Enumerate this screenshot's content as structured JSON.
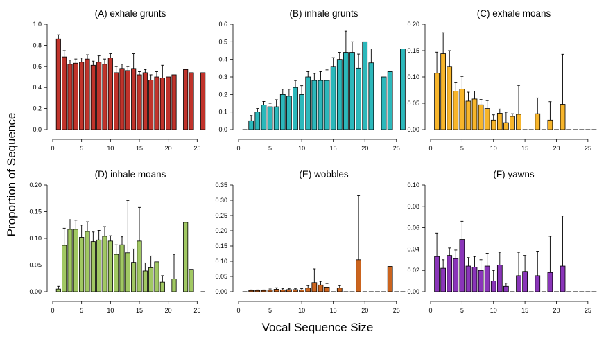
{
  "figure": {
    "xlabel": "Vocal Sequence Size",
    "ylabel": "Proportion of Sequence"
  },
  "chart_data": [
    {
      "type": "bar",
      "title": "(A) exhale grunts",
      "color": "#c0332b",
      "xlim": [
        0,
        27
      ],
      "xticks": [
        0,
        5,
        10,
        15,
        20,
        25
      ],
      "ylim": [
        0,
        1.0
      ],
      "yticks": [
        "0.0",
        "0.2",
        "0.4",
        "0.6",
        "0.8",
        "1.0"
      ],
      "x": [
        1,
        2,
        3,
        4,
        5,
        6,
        7,
        8,
        9,
        10,
        11,
        12,
        13,
        14,
        15,
        16,
        17,
        18,
        19,
        20,
        21,
        23,
        24,
        26
      ],
      "values": [
        0.86,
        0.69,
        0.62,
        0.63,
        0.64,
        0.67,
        0.61,
        0.64,
        0.62,
        0.68,
        0.54,
        0.58,
        0.56,
        0.58,
        0.52,
        0.54,
        0.47,
        0.5,
        0.49,
        0.5,
        0.52,
        0.57,
        0.54,
        0.54
      ],
      "errors": [
        0.04,
        0.06,
        0.04,
        0.04,
        0.04,
        0.04,
        0.04,
        0.06,
        0.05,
        0.04,
        0.06,
        0.04,
        0.04,
        0.14,
        0.03,
        0.03,
        0.05,
        0.05,
        0.12,
        0.0,
        0.0,
        0.0,
        0.0,
        0.0
      ]
    },
    {
      "type": "bar",
      "title": "(B) inhale grunts",
      "color": "#2cb8bb",
      "xlim": [
        0,
        27
      ],
      "xticks": [
        0,
        5,
        10,
        15,
        20,
        25
      ],
      "ylim": [
        0,
        0.6
      ],
      "yticks": [
        "0.0",
        "0.1",
        "0.2",
        "0.3",
        "0.4",
        "0.5",
        "0.6"
      ],
      "x": [
        2,
        3,
        4,
        5,
        6,
        7,
        8,
        9,
        10,
        11,
        12,
        13,
        14,
        15,
        16,
        17,
        18,
        19,
        20,
        21,
        23,
        24,
        26
      ],
      "values": [
        0.05,
        0.1,
        0.14,
        0.13,
        0.13,
        0.2,
        0.19,
        0.24,
        0.2,
        0.3,
        0.28,
        0.28,
        0.28,
        0.36,
        0.4,
        0.44,
        0.44,
        0.35,
        0.5,
        0.38,
        0.3,
        0.33,
        0.46
      ],
      "errors": [
        0.03,
        0.02,
        0.02,
        0.02,
        0.04,
        0.03,
        0.04,
        0.04,
        0.05,
        0.03,
        0.04,
        0.05,
        0.06,
        0.05,
        0.04,
        0.12,
        0.06,
        0.08,
        0.0,
        0.08,
        0.0,
        0.0,
        0.0
      ],
      "zero_x": [
        1
      ]
    },
    {
      "type": "bar",
      "title": "(C) exhale moans",
      "color": "#f7b52b",
      "xlim": [
        0,
        27
      ],
      "xticks": [
        0,
        5,
        10,
        15,
        20,
        25
      ],
      "ylim": [
        0,
        0.2
      ],
      "yticks": [
        "0.00",
        "0.05",
        "0.10",
        "0.15",
        "0.20"
      ],
      "x": [
        1,
        2,
        3,
        4,
        5,
        6,
        7,
        8,
        9,
        10,
        11,
        12,
        13,
        14,
        17,
        19,
        21
      ],
      "values": [
        0.107,
        0.144,
        0.12,
        0.073,
        0.077,
        0.054,
        0.058,
        0.047,
        0.04,
        0.018,
        0.031,
        0.013,
        0.025,
        0.029,
        0.03,
        0.018,
        0.048
      ],
      "errors": [
        0.04,
        0.04,
        0.03,
        0.016,
        0.024,
        0.017,
        0.015,
        0.01,
        0.015,
        0.01,
        0.008,
        0.02,
        0.005,
        0.055,
        0.03,
        0.035,
        0.095
      ],
      "zero_x": [
        15,
        16,
        18,
        20,
        22,
        23,
        24,
        25,
        26
      ]
    },
    {
      "type": "bar",
      "title": "(D) inhale moans",
      "color": "#a1c863",
      "xlim": [
        0,
        27
      ],
      "xticks": [
        0,
        5,
        10,
        15,
        20,
        25
      ],
      "ylim": [
        0,
        0.2
      ],
      "yticks": [
        "0.00",
        "0.05",
        "0.10",
        "0.15",
        "0.20"
      ],
      "x": [
        1,
        2,
        3,
        4,
        5,
        6,
        7,
        8,
        9,
        10,
        11,
        12,
        13,
        14,
        15,
        16,
        17,
        18,
        19,
        21,
        23,
        24
      ],
      "values": [
        0.005,
        0.087,
        0.117,
        0.117,
        0.102,
        0.113,
        0.094,
        0.097,
        0.104,
        0.095,
        0.07,
        0.088,
        0.073,
        0.055,
        0.095,
        0.039,
        0.045,
        0.056,
        0.018,
        0.024,
        0.13,
        0.042
      ],
      "errors": [
        0.005,
        0.032,
        0.018,
        0.017,
        0.023,
        0.018,
        0.018,
        0.018,
        0.018,
        0.01,
        0.018,
        0.015,
        0.098,
        0.025,
        0.063,
        0.015,
        0.022,
        0.0,
        0.012,
        0.046,
        0.0,
        0.0
      ],
      "zero_x": [
        26
      ]
    },
    {
      "type": "bar",
      "title": "(E) wobbles",
      "color": "#cb641e",
      "xlim": [
        0,
        27
      ],
      "xticks": [
        0,
        5,
        10,
        15,
        20,
        25
      ],
      "ylim": [
        0,
        0.35
      ],
      "yticks": [
        "0.00",
        "0.05",
        "0.10",
        "0.15",
        "0.20",
        "0.25",
        "0.30",
        "0.35"
      ],
      "x": [
        2,
        3,
        4,
        5,
        6,
        7,
        8,
        9,
        10,
        11,
        12,
        13,
        14,
        16,
        19,
        24
      ],
      "values": [
        0.004,
        0.004,
        0.004,
        0.005,
        0.008,
        0.006,
        0.007,
        0.007,
        0.006,
        0.012,
        0.03,
        0.022,
        0.015,
        0.012,
        0.105,
        0.083
      ],
      "errors": [
        0.002,
        0.002,
        0.002,
        0.004,
        0.005,
        0.004,
        0.004,
        0.004,
        0.004,
        0.008,
        0.045,
        0.012,
        0.012,
        0.008,
        0.21,
        0.0
      ],
      "zero_x": [
        1,
        15,
        17,
        18,
        20,
        21,
        22,
        23,
        25,
        26
      ]
    },
    {
      "type": "bar",
      "title": "(F) yawns",
      "color": "#8a35b9",
      "xlim": [
        0,
        27
      ],
      "xticks": [
        0,
        5,
        10,
        15,
        20,
        25
      ],
      "ylim": [
        0,
        0.1
      ],
      "yticks": [
        "0.00",
        "0.02",
        "0.04",
        "0.06",
        "0.08",
        "0.10"
      ],
      "x": [
        1,
        2,
        3,
        4,
        5,
        6,
        7,
        8,
        9,
        10,
        11,
        12,
        14,
        15,
        17,
        19,
        21
      ],
      "values": [
        0.033,
        0.022,
        0.034,
        0.031,
        0.049,
        0.024,
        0.023,
        0.02,
        0.024,
        0.01,
        0.025,
        0.005,
        0.015,
        0.019,
        0.015,
        0.018,
        0.024
      ],
      "errors": [
        0.022,
        0.008,
        0.007,
        0.008,
        0.017,
        0.008,
        0.01,
        0.01,
        0.012,
        0.01,
        0.012,
        0.003,
        0.022,
        0.015,
        0.023,
        0.034,
        0.047
      ],
      "zero_x": [
        13,
        16,
        18,
        20,
        22,
        23,
        24,
        25,
        26
      ]
    }
  ]
}
